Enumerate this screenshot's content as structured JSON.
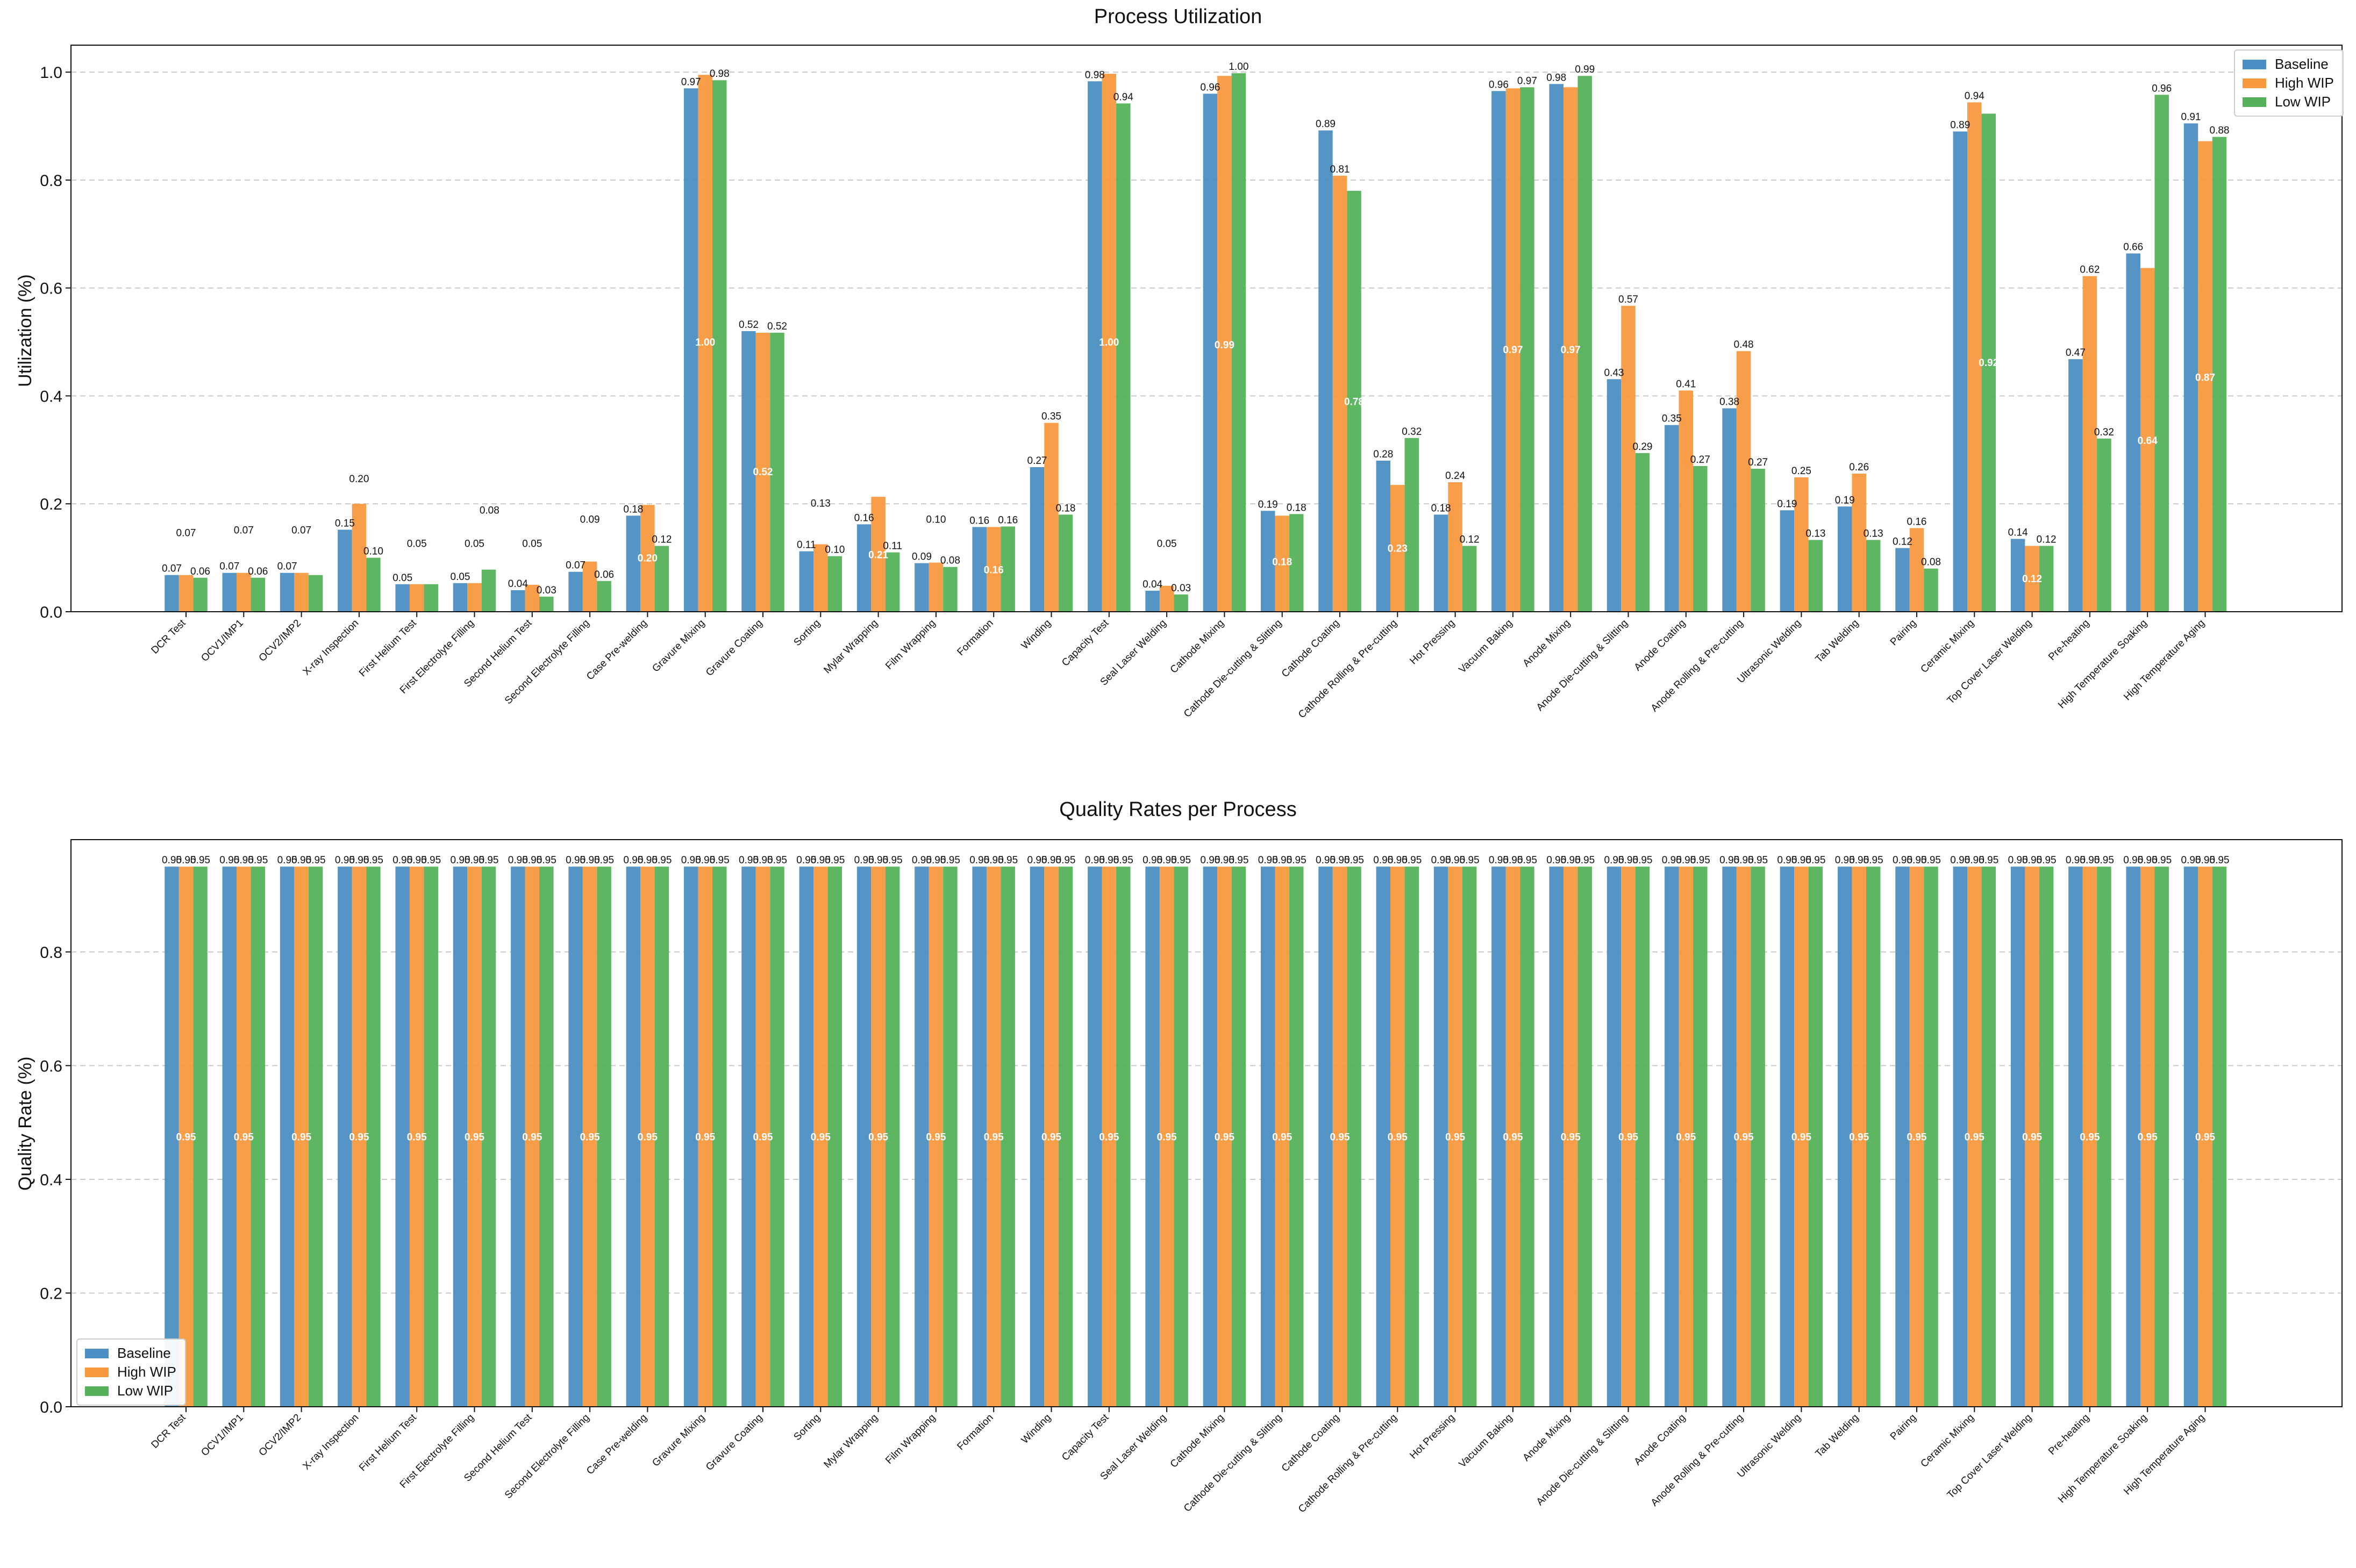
{
  "processes": [
    "DCR Test",
    "OCV1/IMP1",
    "OCV2/IMP2",
    "X-ray Inspection",
    "First Helium Test",
    "First Electrolyte Filling",
    "Second Helium Test",
    "Second Electrolyte Filling",
    "Case Pre-welding",
    "Gravure Mixing",
    "Gravure Coating",
    "Sorting",
    "Mylar Wrapping",
    "Film Wrapping",
    "Formation",
    "Winding",
    "Capacity Test",
    "Seal Laser Welding",
    "Cathode Mixing",
    "Cathode Die-cutting & Slitting",
    "Cathode Coating",
    "Cathode Rolling & Pre-cutting",
    "Hot Pressing",
    "Vacuum Baking",
    "Anode Mixing",
    "Anode Die-cutting & Slitting",
    "Anode Coating",
    "Anode Rolling & Pre-cutting",
    "Ultrasonic Welding",
    "Tab Welding",
    "Pairing",
    "Ceramic Mixing",
    "Top Cover Laser Welding",
    "Pre-heating",
    "High Temperature Soaking",
    "High Temperature Aging"
  ],
  "colors": {
    "Baseline": "#4c8fc3",
    "High WIP": "#f8993e",
    "Low WIP": "#55b25a"
  },
  "chart_data": [
    {
      "type": "bar",
      "title": "Process Utilization",
      "xlabel": "",
      "ylabel": "Utilization (%)",
      "ylim": [
        0,
        1.05
      ],
      "yticks": [
        "0.0",
        "0.2",
        "0.4",
        "0.6",
        "0.8",
        "1.0"
      ],
      "grid": "y-dashed",
      "legend_position": "top-right",
      "categories_ref": "processes",
      "series": [
        {
          "name": "Baseline",
          "values": [
            0.07,
            0.07,
            0.07,
            0.15,
            0.05,
            0.05,
            0.04,
            0.07,
            0.18,
            0.97,
            0.52,
            0.11,
            0.16,
            0.09,
            0.16,
            0.27,
            0.98,
            0.04,
            0.96,
            0.19,
            0.89,
            0.28,
            0.18,
            0.96,
            0.98,
            0.43,
            0.35,
            0.38,
            0.19,
            0.19,
            0.12,
            0.89,
            0.14,
            0.47,
            0.66,
            0.91
          ]
        },
        {
          "name": "High WIP",
          "values": [
            0.07,
            0.07,
            0.07,
            0.2,
            0.05,
            0.05,
            0.05,
            0.09,
            0.2,
            1.0,
            0.52,
            0.13,
            0.21,
            0.1,
            0.16,
            0.35,
            1.0,
            0.05,
            0.99,
            0.18,
            0.81,
            0.23,
            0.24,
            0.97,
            0.97,
            0.57,
            0.41,
            0.48,
            0.25,
            0.26,
            0.16,
            0.94,
            0.12,
            0.62,
            0.64,
            0.87
          ]
        },
        {
          "name": "Low WIP",
          "values": [
            0.06,
            0.06,
            0.07,
            0.1,
            0.05,
            0.08,
            0.03,
            0.06,
            0.12,
            0.98,
            0.52,
            0.1,
            0.11,
            0.08,
            0.16,
            0.18,
            0.94,
            0.03,
            1.0,
            0.18,
            0.78,
            0.32,
            0.12,
            0.97,
            0.99,
            0.29,
            0.27,
            0.27,
            0.13,
            0.13,
            0.08,
            0.92,
            0.12,
            0.32,
            0.96,
            0.88
          ]
        }
      ],
      "bar_heights": {
        "Baseline": [
          0.068,
          0.072,
          0.072,
          0.152,
          0.051,
          0.053,
          0.04,
          0.074,
          0.178,
          0.97,
          0.52,
          0.112,
          0.162,
          0.09,
          0.157,
          0.268,
          0.983,
          0.039,
          0.96,
          0.187,
          0.892,
          0.28,
          0.18,
          0.965,
          0.978,
          0.431,
          0.346,
          0.377,
          0.188,
          0.195,
          0.118,
          0.89,
          0.135,
          0.468,
          0.664,
          0.905
        ],
        "High WIP": [
          0.068,
          0.072,
          0.072,
          0.2,
          0.051,
          0.053,
          0.05,
          0.093,
          0.198,
          0.995,
          0.517,
          0.125,
          0.213,
          0.091,
          0.157,
          0.35,
          0.997,
          0.048,
          0.993,
          0.178,
          0.808,
          0.235,
          0.24,
          0.97,
          0.972,
          0.567,
          0.41,
          0.483,
          0.249,
          0.256,
          0.155,
          0.944,
          0.122,
          0.622,
          0.637,
          0.872
        ],
        "Low WIP": [
          0.063,
          0.063,
          0.068,
          0.1,
          0.051,
          0.078,
          0.028,
          0.057,
          0.122,
          0.985,
          0.517,
          0.103,
          0.11,
          0.083,
          0.158,
          0.18,
          0.942,
          0.032,
          0.998,
          0.181,
          0.78,
          0.322,
          0.122,
          0.972,
          0.993,
          0.294,
          0.27,
          0.265,
          0.133,
          0.133,
          0.08,
          0.923,
          0.122,
          0.321,
          0.958,
          0.88
        ]
      },
      "float_labels": [
        {
          "index": 0,
          "text": "0.07",
          "y": 0.14
        },
        {
          "index": 1,
          "text": "0.07",
          "y": 0.145
        },
        {
          "index": 2,
          "text": "0.07",
          "y": 0.145
        },
        {
          "index": 3,
          "text": "0.20",
          "y": 0.24
        },
        {
          "index": 4,
          "text": "0.05",
          "y": 0.12
        },
        {
          "index": 5,
          "text": "0.05",
          "y": 0.12
        },
        {
          "index": 5,
          "text": "0.08",
          "y": 0.182,
          "offset": 0.7
        },
        {
          "index": 6,
          "text": "0.05",
          "y": 0.12
        },
        {
          "index": 7,
          "text": "0.09",
          "y": 0.165
        },
        {
          "index": 11,
          "text": "0.13",
          "y": 0.195
        },
        {
          "index": 13,
          "text": "0.10",
          "y": 0.165
        },
        {
          "index": 17,
          "text": "0.05",
          "y": 0.12
        }
      ],
      "inner_labels": [
        {
          "index": 9,
          "series": 1,
          "text": "1.00",
          "y": 0.5
        },
        {
          "index": 10,
          "series": 1,
          "text": "0.52",
          "y": 0.26
        },
        {
          "index": 8,
          "series": 1,
          "text": "0.20",
          "y": 0.1
        },
        {
          "index": 12,
          "series": 1,
          "text": "0.21",
          "y": 0.106
        },
        {
          "index": 14,
          "series": 1,
          "text": "0.16",
          "y": 0.078
        },
        {
          "index": 16,
          "series": 1,
          "text": "1.00",
          "y": 0.5
        },
        {
          "index": 18,
          "series": 1,
          "text": "0.99",
          "y": 0.495
        },
        {
          "index": 19,
          "series": 1,
          "text": "0.18",
          "y": 0.093
        },
        {
          "index": 20,
          "series": 2,
          "text": "0.78",
          "y": 0.39
        },
        {
          "index": 21,
          "series": 1,
          "text": "0.23",
          "y": 0.118
        },
        {
          "index": 23,
          "series": 1,
          "text": "0.97",
          "y": 0.486
        },
        {
          "index": 24,
          "series": 1,
          "text": "0.97",
          "y": 0.486
        },
        {
          "index": 31,
          "series": 2,
          "text": "0.92",
          "y": 0.462
        },
        {
          "index": 32,
          "series": 1,
          "text": "0.12",
          "y": 0.062
        },
        {
          "index": 34,
          "series": 1,
          "text": "0.64",
          "y": 0.318
        },
        {
          "index": 35,
          "series": 1,
          "text": "0.87",
          "y": 0.435
        }
      ]
    },
    {
      "type": "bar",
      "title": "Quality Rates per Process",
      "xlabel": "",
      "ylabel": "Quality Rate (%)",
      "ylim": [
        0,
        0.9975
      ],
      "yticks": [
        "0.0",
        "0.2",
        "0.4",
        "0.6",
        "0.8"
      ],
      "grid": "y-dashed",
      "legend_position": "bottom-left",
      "categories_ref": "processes",
      "series": [
        {
          "name": "Baseline",
          "values": [
            0.95,
            0.95,
            0.95,
            0.95,
            0.95,
            0.95,
            0.95,
            0.95,
            0.95,
            0.95,
            0.95,
            0.95,
            0.95,
            0.95,
            0.95,
            0.95,
            0.95,
            0.95,
            0.95,
            0.95,
            0.95,
            0.95,
            0.95,
            0.95,
            0.95,
            0.95,
            0.95,
            0.95,
            0.95,
            0.95,
            0.95,
            0.95,
            0.95,
            0.95,
            0.95,
            0.95
          ]
        },
        {
          "name": "High WIP",
          "values": [
            0.95,
            0.95,
            0.95,
            0.95,
            0.95,
            0.95,
            0.95,
            0.95,
            0.95,
            0.95,
            0.95,
            0.95,
            0.95,
            0.95,
            0.95,
            0.95,
            0.95,
            0.95,
            0.95,
            0.95,
            0.95,
            0.95,
            0.95,
            0.95,
            0.95,
            0.95,
            0.95,
            0.95,
            0.95,
            0.95,
            0.95,
            0.95,
            0.95,
            0.95,
            0.95,
            0.95
          ]
        },
        {
          "name": "Low WIP",
          "values": [
            0.95,
            0.95,
            0.95,
            0.95,
            0.95,
            0.95,
            0.95,
            0.95,
            0.95,
            0.95,
            0.95,
            0.95,
            0.95,
            0.95,
            0.95,
            0.95,
            0.95,
            0.95,
            0.95,
            0.95,
            0.95,
            0.95,
            0.95,
            0.95,
            0.95,
            0.95,
            0.95,
            0.95,
            0.95,
            0.95,
            0.95,
            0.95,
            0.95,
            0.95,
            0.95,
            0.95
          ]
        }
      ],
      "inner_label": "0.95"
    }
  ]
}
